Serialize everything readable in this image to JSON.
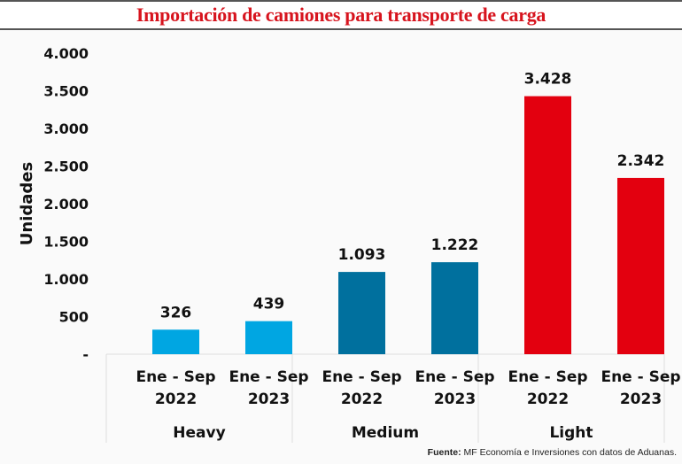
{
  "chart_data": {
    "type": "bar",
    "title": "Importación de camiones para transporte de carga",
    "ylabel": "Unidades",
    "ylim": [
      0,
      4000
    ],
    "yticks": [
      {
        "v": 0,
        "label": "-"
      },
      {
        "v": 500,
        "label": "500"
      },
      {
        "v": 1000,
        "label": "1.000"
      },
      {
        "v": 1500,
        "label": "1.500"
      },
      {
        "v": 2000,
        "label": "2.000"
      },
      {
        "v": 2500,
        "label": "2.500"
      },
      {
        "v": 3000,
        "label": "3.000"
      },
      {
        "v": 3500,
        "label": "3.500"
      },
      {
        "v": 4000,
        "label": "4.000"
      }
    ],
    "groups": [
      {
        "name": "Heavy",
        "color": "#00a6e2",
        "bars": [
          {
            "period": "Ene - Sep",
            "year": "2022",
            "value": 326,
            "label": "326"
          },
          {
            "period": "Ene - Sep",
            "year": "2023",
            "value": 439,
            "label": "439"
          }
        ]
      },
      {
        "name": "Medium",
        "color": "#00709e",
        "bars": [
          {
            "period": "Ene - Sep",
            "year": "2022",
            "value": 1093,
            "label": "1.093"
          },
          {
            "period": "Ene - Sep",
            "year": "2023",
            "value": 1222,
            "label": "1.222"
          }
        ]
      },
      {
        "name": "Light",
        "color": "#e3000f",
        "bars": [
          {
            "period": "Ene - Sep",
            "year": "2022",
            "value": 3428,
            "label": "3.428"
          },
          {
            "period": "Ene - Sep",
            "year": "2023",
            "value": 2342,
            "label": "2.342"
          }
        ]
      }
    ],
    "grid": false
  },
  "source": {
    "label": "Fuente:",
    "text": " MF Economía e Inversiones con datos de Aduanas."
  }
}
